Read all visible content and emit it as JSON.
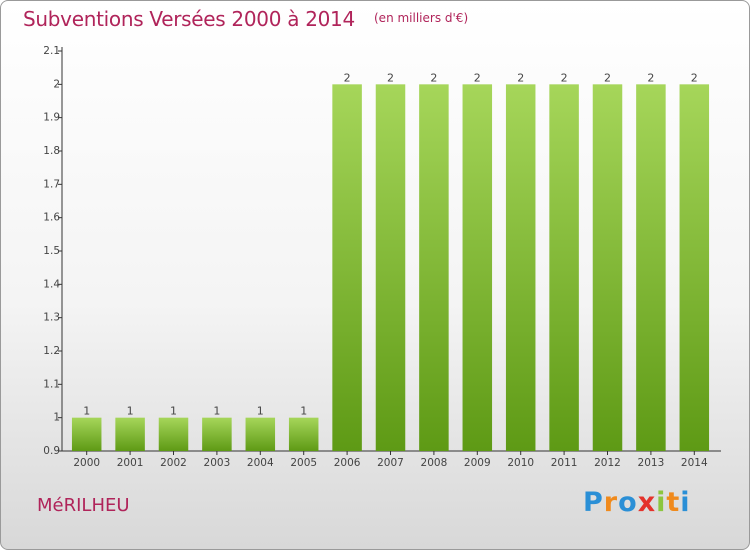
{
  "header": {
    "title": "Subventions Versées 2000 à 2014",
    "unit": "(en milliers d'€)"
  },
  "footer": {
    "commune": "MéRILHEU",
    "logo_letters": [
      "P",
      "r",
      "o",
      "x",
      "i",
      "t",
      "i"
    ]
  },
  "colors": {
    "accent": "#b0245a",
    "bar_light": "#a6d65a",
    "bar_dark": "#5e9a15"
  },
  "chart_data": {
    "type": "bar",
    "title": "Subventions Versées 2000 à 2014",
    "subtitle": "(en milliers d'€)",
    "categories": [
      "2000",
      "2001",
      "2002",
      "2003",
      "2004",
      "2005",
      "2006",
      "2007",
      "2008",
      "2009",
      "2010",
      "2011",
      "2012",
      "2013",
      "2014"
    ],
    "values": [
      1,
      1,
      1,
      1,
      1,
      1,
      2,
      2,
      2,
      2,
      2,
      2,
      2,
      2,
      2
    ],
    "data_labels": [
      "1",
      "1",
      "1",
      "1",
      "1",
      "1",
      "2",
      "2",
      "2",
      "2",
      "2",
      "2",
      "2",
      "2",
      "2"
    ],
    "ylim": [
      0.9,
      2.1
    ],
    "yticks": [
      0.9,
      1,
      1.1,
      1.2,
      1.3,
      1.4,
      1.5,
      1.6,
      1.7,
      1.8,
      1.9,
      2,
      2.1
    ],
    "ytick_labels": [
      "0.9",
      "1",
      "1.1",
      "1.2",
      "1.3",
      "1.4",
      "1.5",
      "1.6",
      "1.7",
      "1.8",
      "1.9",
      "2",
      "2.1"
    ],
    "xlabel": "",
    "ylabel": "",
    "grid": false
  }
}
